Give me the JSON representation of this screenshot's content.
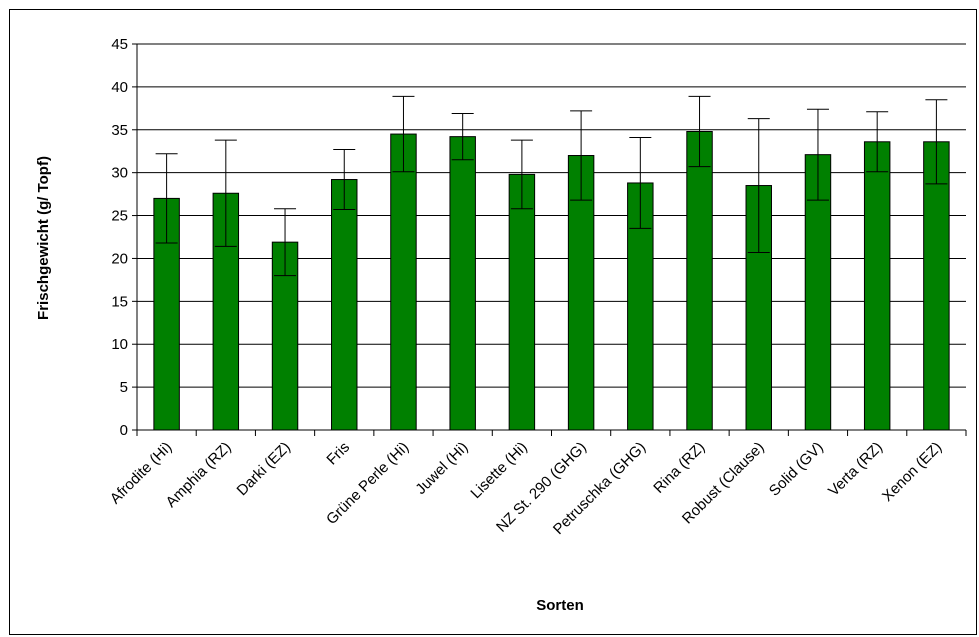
{
  "chart_data": {
    "type": "bar",
    "title": "",
    "xlabel": "Sorten",
    "ylabel": "Frischgewicht (g/ Topf)",
    "ylim": [
      0,
      45
    ],
    "yticks": [
      0,
      5,
      10,
      15,
      20,
      25,
      30,
      35,
      40,
      45
    ],
    "yticks_text": [
      "0",
      "5",
      "10",
      "15",
      "20",
      "25",
      "30",
      "35",
      "40",
      "45"
    ],
    "grid": true,
    "legend": "none",
    "bar_color": "#008000",
    "categories": [
      "Afrodite (Hi)",
      "Amphia (RZ)",
      "Darki (EZ)",
      "Fris",
      "Grüne Perle (Hi)",
      "Juwel (Hi)",
      "Lisette (Hi)",
      "NZ St. 290 (GHG)",
      "Petruschka (GHG)",
      "Rina (RZ)",
      "Robust (Clause)",
      "Solid (GV)",
      "Verta (RZ)",
      "Xenon (EZ)"
    ],
    "values": [
      27.0,
      27.6,
      21.9,
      29.2,
      34.5,
      34.2,
      29.8,
      32.0,
      28.8,
      34.8,
      28.5,
      32.1,
      33.6,
      33.6
    ],
    "error_plus": [
      5.2,
      6.2,
      3.9,
      3.5,
      4.4,
      2.7,
      4.0,
      5.2,
      5.3,
      4.1,
      7.8,
      5.3,
      3.5,
      4.9
    ],
    "error_minus": [
      5.2,
      6.2,
      3.9,
      3.5,
      4.4,
      2.7,
      4.0,
      5.2,
      5.3,
      4.1,
      7.8,
      5.3,
      3.5,
      4.9
    ]
  }
}
